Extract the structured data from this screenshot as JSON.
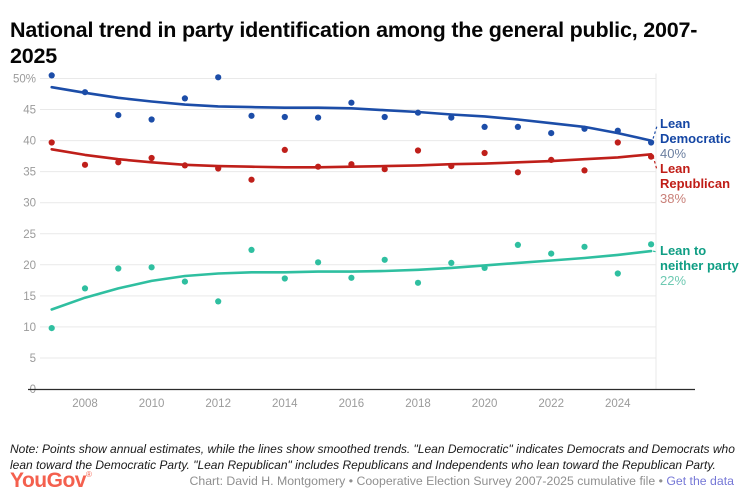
{
  "title": "National trend in party identification among the general public, 2007-2025",
  "note": "Note: Points show annual estimates, while the lines show smoothed trends. \"Lean Democratic\" indicates Democrats and Democrats who lean toward the Democratic Party. \"Lean Republican\" includes Republicans and Independents who lean toward the Republican Party.",
  "footer": {
    "logo": "YouGov",
    "logo_mark": "®",
    "logo_color": "#f4604e",
    "credit": "Chart: David H. Montgomery • Cooperative Election Survey 2007-2025 cumulative file • ",
    "link_label": "Get the data",
    "link_color": "#7577d6"
  },
  "chart_data": {
    "type": "scatter",
    "title": "National trend in party identification among the general public, 2007-2025",
    "xlabel": "",
    "ylabel": "",
    "ylim": [
      0,
      52
    ],
    "grid": "horizontal",
    "legend_position": "right-edge-labels",
    "x": [
      2007,
      2008,
      2009,
      2010,
      2011,
      2012,
      2013,
      2014,
      2015,
      2016,
      2017,
      2018,
      2019,
      2020,
      2021,
      2022,
      2023,
      2024,
      2025
    ],
    "x_ticks": [
      2008,
      2010,
      2012,
      2014,
      2016,
      2018,
      2020,
      2022,
      2024
    ],
    "y_ticks": [
      {
        "value": 50,
        "label": "50%"
      },
      {
        "value": 45,
        "label": "45"
      },
      {
        "value": 40,
        "label": "40"
      },
      {
        "value": 35,
        "label": "35"
      },
      {
        "value": 30,
        "label": "30"
      },
      {
        "value": 25,
        "label": "25"
      },
      {
        "value": 20,
        "label": "20"
      },
      {
        "value": 15,
        "label": "15"
      },
      {
        "value": 10,
        "label": "10"
      },
      {
        "value": 5,
        "label": "5"
      },
      {
        "value": 0,
        "label": "0"
      }
    ],
    "colors": {
      "grid": "#e9e9e9",
      "axis": "#2b2b2b",
      "tick_labels": "#9b9b9b"
    },
    "series": [
      {
        "name": "Lean Democratic",
        "end_label": "40%",
        "color": "#1c4da8",
        "label_color": "#1446a4",
        "muted_color": "#6b7fa0",
        "points": [
          50.5,
          47.8,
          44.1,
          43.4,
          46.8,
          50.2,
          44.0,
          43.8,
          43.7,
          46.1,
          43.8,
          44.5,
          43.7,
          42.2,
          42.2,
          41.2,
          41.9,
          41.6,
          39.7
        ],
        "trend": [
          48.6,
          47.7,
          46.9,
          46.3,
          45.8,
          45.5,
          45.4,
          45.3,
          45.3,
          45.2,
          44.9,
          44.6,
          44.2,
          43.9,
          43.4,
          42.8,
          42.2,
          41.2,
          40.0
        ]
      },
      {
        "name": "Lean Republican",
        "end_label": "38%",
        "color": "#bf1f1a",
        "label_color": "#c01d17",
        "muted_color": "#c98079",
        "points": [
          39.7,
          36.1,
          36.5,
          37.2,
          36.0,
          35.5,
          33.7,
          38.5,
          35.8,
          36.2,
          35.4,
          38.4,
          35.9,
          38.0,
          34.9,
          36.9,
          35.2,
          39.7,
          37.4
        ],
        "trend": [
          38.6,
          37.7,
          37.0,
          36.5,
          36.1,
          35.9,
          35.8,
          35.7,
          35.7,
          35.8,
          35.9,
          36.0,
          36.2,
          36.3,
          36.5,
          36.7,
          37.0,
          37.3,
          37.8
        ]
      },
      {
        "name": "Lean to neither party",
        "end_label": "22%",
        "color": "#2fbfa0",
        "label_color": "#0f9e84",
        "muted_color": "#6ec9b2",
        "points": [
          9.8,
          16.2,
          19.4,
          19.6,
          17.3,
          14.1,
          22.4,
          17.8,
          20.4,
          17.9,
          20.8,
          17.1,
          20.3,
          19.5,
          23.2,
          21.8,
          22.9,
          18.6,
          23.3
        ],
        "trend": [
          12.8,
          14.7,
          16.2,
          17.4,
          18.2,
          18.6,
          18.8,
          18.8,
          18.9,
          18.9,
          19.0,
          19.2,
          19.5,
          19.9,
          20.3,
          20.7,
          21.1,
          21.6,
          22.2
        ]
      }
    ]
  }
}
